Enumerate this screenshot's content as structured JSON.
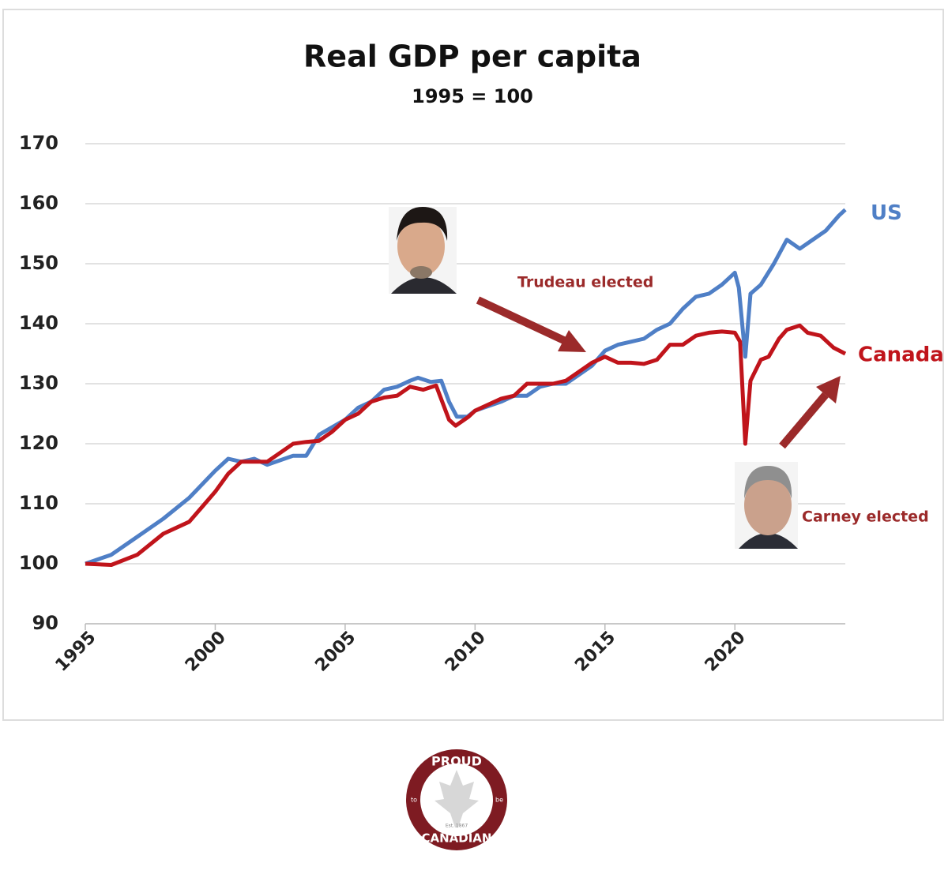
{
  "chart_data": {
    "type": "line",
    "title": "Real GDP per capita",
    "subtitle": "1995 = 100",
    "xlim": [
      1995,
      2024.25
    ],
    "xticks": [
      1995,
      2000,
      2005,
      2010,
      2015,
      2020
    ],
    "ylim": [
      90,
      170
    ],
    "yticks": [
      90,
      100,
      110,
      120,
      130,
      140,
      150,
      160,
      170
    ],
    "grid": true,
    "series": [
      {
        "name": "US",
        "color": "#4f7fc6",
        "x": [
          1995,
          1996,
          1997,
          1998,
          1999,
          2000,
          2000.5,
          2001,
          2001.5,
          2002,
          2003,
          2003.5,
          2004,
          2005,
          2005.5,
          2006,
          2006.5,
          2007,
          2007.5,
          2007.8,
          2008.3,
          2008.7,
          2009,
          2009.3,
          2009.7,
          2010,
          2011,
          2011.5,
          2012,
          2012.5,
          2013,
          2013.5,
          2014,
          2014.5,
          2015,
          2015.5,
          2016,
          2016.5,
          2017,
          2017.5,
          2018,
          2018.5,
          2019,
          2019.5,
          2020,
          2020.15,
          2020.4,
          2020.6,
          2021,
          2021.5,
          2022,
          2022.5,
          2023,
          2023.5,
          2024,
          2024.25
        ],
        "values": [
          100,
          101.5,
          104.5,
          107.5,
          111,
          115.5,
          117.5,
          117,
          117.5,
          116.5,
          118,
          118,
          121.5,
          124,
          126,
          127,
          129,
          129.5,
          130.5,
          131,
          130.3,
          130.5,
          127,
          124.5,
          124.5,
          125.5,
          127,
          128,
          128,
          129.5,
          130,
          130,
          131.5,
          133,
          135.5,
          136.5,
          137,
          137.5,
          139,
          140,
          142.5,
          144.5,
          145,
          146.5,
          148.5,
          146,
          134.5,
          145,
          146.5,
          150,
          154,
          152.5,
          154,
          155.5,
          158,
          159
        ]
      },
      {
        "name": "Canada",
        "color": "#c0141b",
        "x": [
          1995,
          1996,
          1997,
          1998,
          1999,
          2000,
          2000.5,
          2001,
          2002,
          2002.5,
          2003,
          2003.5,
          2004,
          2004.5,
          2005,
          2005.5,
          2006,
          2006.5,
          2007,
          2007.5,
          2008,
          2008.5,
          2009,
          2009.25,
          2009.75,
          2010,
          2011,
          2011.5,
          2012,
          2012.5,
          2013,
          2013.5,
          2014,
          2014.5,
          2015,
          2015.5,
          2016,
          2016.5,
          2017,
          2017.5,
          2018,
          2018.5,
          2019,
          2019.5,
          2020,
          2020.2,
          2020.4,
          2020.6,
          2021,
          2021.3,
          2021.7,
          2022,
          2022.5,
          2022.8,
          2023.3,
          2023.8,
          2024.25
        ],
        "values": [
          100,
          99.8,
          101.5,
          105,
          107,
          112,
          115,
          117,
          117,
          118.5,
          120,
          120.3,
          120.5,
          122,
          124,
          125,
          127,
          127.7,
          128,
          129.5,
          129,
          129.7,
          124,
          123,
          124.5,
          125.5,
          127.5,
          128,
          130,
          130,
          130,
          130.5,
          132,
          133.5,
          134.5,
          133.5,
          133.5,
          133.3,
          134,
          136.5,
          136.5,
          138,
          138.5,
          138.7,
          138.5,
          137,
          120,
          130.5,
          134,
          134.5,
          137.5,
          139,
          139.7,
          138.5,
          138,
          136,
          135
        ]
      }
    ],
    "annotations": [
      "Trudeau elected",
      "Carney elected"
    ]
  },
  "logo": {
    "top": "PROUD",
    "left": "to",
    "right": "be",
    "bottom": "CANADIAN",
    "est": "Est. 1867"
  }
}
